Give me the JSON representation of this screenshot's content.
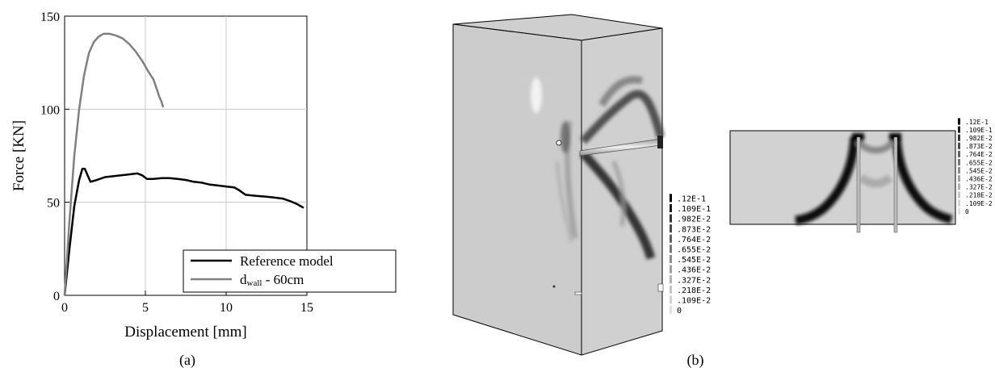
{
  "chart_data": {
    "type": "line",
    "xlabel": "Displacement [mm]",
    "ylabel": "Force [KN]",
    "xlim": [
      0,
      15
    ],
    "ylim": [
      0,
      150
    ],
    "xticks": [
      "0",
      "5",
      "10",
      "15"
    ],
    "yticks": [
      "0",
      "50",
      "100",
      "150"
    ],
    "grid": true,
    "legend_position": "bottom-right",
    "series": [
      {
        "name": "Reference model",
        "color": "#000000",
        "x": [
          0,
          0.3,
          0.6,
          0.9,
          1.1,
          1.25,
          1.4,
          1.6,
          2.0,
          2.5,
          3.0,
          3.5,
          4.0,
          4.5,
          4.8,
          5.1,
          5.5,
          6.0,
          6.5,
          7.0,
          7.5,
          8.0,
          8.5,
          9.0,
          9.5,
          10.0,
          10.5,
          10.8,
          11.2,
          11.8,
          12.5,
          13.0,
          13.5,
          14.0,
          14.4,
          14.8
        ],
        "y": [
          0,
          25,
          48,
          62,
          68,
          68,
          65,
          61,
          62,
          63.5,
          64,
          64.5,
          65,
          65.5,
          64.5,
          62.5,
          62.5,
          63,
          63,
          62.5,
          62,
          61,
          60.5,
          59.5,
          59,
          58.5,
          58,
          56.5,
          54,
          53.5,
          53,
          52.5,
          52,
          50.5,
          49,
          47
        ]
      },
      {
        "name": "d",
        "subscript": "wall",
        "suffix": " - 60cm",
        "color": "#808080",
        "x": [
          0,
          0.3,
          0.6,
          0.9,
          1.2,
          1.5,
          1.8,
          2.1,
          2.4,
          2.8,
          3.2,
          3.6,
          4.0,
          4.4,
          4.8,
          5.2,
          5.5,
          5.7,
          5.85,
          6.0,
          6.1
        ],
        "y": [
          0,
          40,
          75,
          100,
          118,
          130,
          136,
          139,
          140.5,
          140.5,
          139.5,
          138,
          135,
          131,
          126,
          120,
          116,
          111,
          107,
          104,
          101
        ]
      }
    ]
  },
  "captions": {
    "a": "(a)",
    "b": "(b)"
  },
  "contour_legend": {
    "values": [
      ".12E-1",
      ".109E-1",
      ".982E-2",
      ".873E-2",
      ".764E-2",
      ".655E-2",
      ".545E-2",
      ".436E-2",
      ".327E-2",
      ".218E-2",
      ".109E-2",
      "0"
    ],
    "colors": [
      "#000000",
      "#1c1c1c",
      "#333333",
      "#4a4a4a",
      "#616161",
      "#777777",
      "#8c8c8c",
      "#a0a0a0",
      "#b3b3b3",
      "#c4c4c4",
      "#d3d3d3",
      "#e0e0e0"
    ]
  }
}
